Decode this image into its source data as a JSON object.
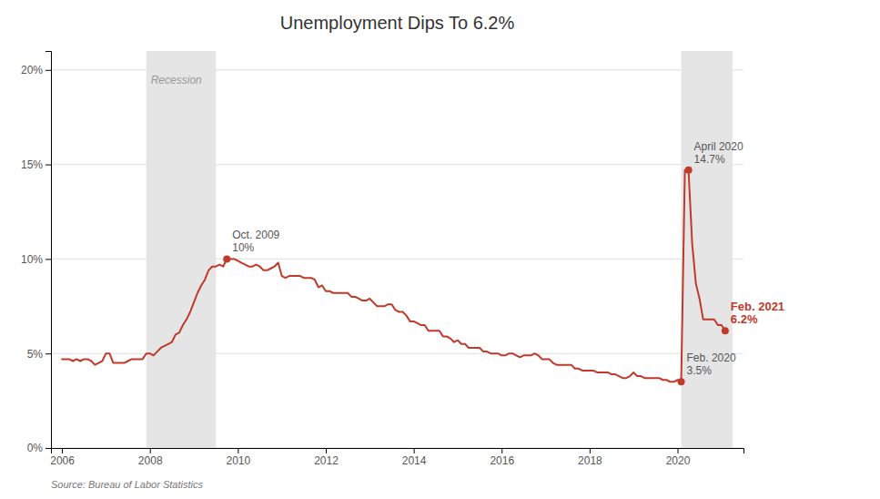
{
  "chart_data": {
    "type": "line",
    "title": "Unemployment Dips To 6.2%",
    "source": "Source: Bureau of Labor Statistics",
    "color": "#c0392b",
    "grid": true,
    "xlim": [
      2005.75,
      2021.5
    ],
    "ylim": [
      0,
      0.21
    ],
    "xticks": [
      2006,
      2008,
      2010,
      2012,
      2014,
      2016,
      2018,
      2020
    ],
    "yticks": [
      {
        "value": 0,
        "label": "0%"
      },
      {
        "value": 0.05,
        "label": "5%"
      },
      {
        "value": 0.1,
        "label": "10%"
      },
      {
        "value": 0.15,
        "label": "15%"
      },
      {
        "value": 0.2,
        "label": "20%"
      }
    ],
    "bands": [
      {
        "x": [
          2007.917,
          2009.5
        ],
        "label": "Recession",
        "color": "#e5e5e5"
      },
      {
        "x": [
          2020.083,
          2021.25
        ],
        "color": "#e5e5e5"
      }
    ],
    "annotations": [
      {
        "x": 2009.75,
        "y": 0.1,
        "text": [
          "Oct. 2009",
          "10%"
        ],
        "color": "#555555"
      },
      {
        "x": 2020.25,
        "y": 0.147,
        "text": [
          "April 2020",
          "14.7%"
        ],
        "color": "#555555"
      },
      {
        "x": 2020.083,
        "y": 0.035,
        "text": [
          "Feb. 2020",
          "3.5%"
        ],
        "color": "#555555"
      },
      {
        "x": 2021.083,
        "y": 0.062,
        "text": [
          "Feb. 2021",
          "6.2%"
        ],
        "color": "#c0392b"
      }
    ],
    "x": [
      2006.0,
      2006.083,
      2006.167,
      2006.25,
      2006.333,
      2006.417,
      2006.5,
      2006.583,
      2006.667,
      2006.75,
      2006.833,
      2006.917,
      2007.0,
      2007.083,
      2007.167,
      2007.25,
      2007.333,
      2007.417,
      2007.5,
      2007.583,
      2007.667,
      2007.75,
      2007.833,
      2007.917,
      2008.0,
      2008.083,
      2008.167,
      2008.25,
      2008.333,
      2008.417,
      2008.5,
      2008.583,
      2008.667,
      2008.75,
      2008.833,
      2008.917,
      2009.0,
      2009.083,
      2009.167,
      2009.25,
      2009.333,
      2009.417,
      2009.5,
      2009.583,
      2009.667,
      2009.75,
      2009.833,
      2009.917,
      2010.0,
      2010.083,
      2010.167,
      2010.25,
      2010.333,
      2010.417,
      2010.5,
      2010.583,
      2010.667,
      2010.75,
      2010.833,
      2010.917,
      2011.0,
      2011.083,
      2011.167,
      2011.25,
      2011.333,
      2011.417,
      2011.5,
      2011.583,
      2011.667,
      2011.75,
      2011.833,
      2011.917,
      2012.0,
      2012.083,
      2012.167,
      2012.25,
      2012.333,
      2012.417,
      2012.5,
      2012.583,
      2012.667,
      2012.75,
      2012.833,
      2012.917,
      2013.0,
      2013.083,
      2013.167,
      2013.25,
      2013.333,
      2013.417,
      2013.5,
      2013.583,
      2013.667,
      2013.75,
      2013.833,
      2013.917,
      2014.0,
      2014.083,
      2014.167,
      2014.25,
      2014.333,
      2014.417,
      2014.5,
      2014.583,
      2014.667,
      2014.75,
      2014.833,
      2014.917,
      2015.0,
      2015.083,
      2015.167,
      2015.25,
      2015.333,
      2015.417,
      2015.5,
      2015.583,
      2015.667,
      2015.75,
      2015.833,
      2015.917,
      2016.0,
      2016.083,
      2016.167,
      2016.25,
      2016.333,
      2016.417,
      2016.5,
      2016.583,
      2016.667,
      2016.75,
      2016.833,
      2016.917,
      2017.0,
      2017.083,
      2017.167,
      2017.25,
      2017.333,
      2017.417,
      2017.5,
      2017.583,
      2017.667,
      2017.75,
      2017.833,
      2017.917,
      2018.0,
      2018.083,
      2018.167,
      2018.25,
      2018.333,
      2018.417,
      2018.5,
      2018.583,
      2018.667,
      2018.75,
      2018.833,
      2018.917,
      2019.0,
      2019.083,
      2019.167,
      2019.25,
      2019.333,
      2019.417,
      2019.5,
      2019.583,
      2019.667,
      2019.75,
      2019.833,
      2019.917,
      2020.0,
      2020.083,
      2020.167,
      2020.25,
      2020.333,
      2020.417,
      2020.5,
      2020.583,
      2020.667,
      2020.75,
      2020.833,
      2020.917,
      2021.0,
      2021.083
    ],
    "values": [
      0.047,
      0.047,
      0.047,
      0.046,
      0.047,
      0.046,
      0.047,
      0.047,
      0.046,
      0.044,
      0.045,
      0.046,
      0.05,
      0.05,
      0.045,
      0.045,
      0.045,
      0.045,
      0.046,
      0.047,
      0.047,
      0.047,
      0.047,
      0.05,
      0.05,
      0.049,
      0.051,
      0.053,
      0.054,
      0.055,
      0.056,
      0.06,
      0.061,
      0.065,
      0.068,
      0.072,
      0.077,
      0.082,
      0.086,
      0.089,
      0.094,
      0.096,
      0.096,
      0.097,
      0.096,
      0.1,
      0.1,
      0.1,
      0.099,
      0.098,
      0.097,
      0.096,
      0.096,
      0.097,
      0.096,
      0.094,
      0.094,
      0.095,
      0.096,
      0.098,
      0.091,
      0.09,
      0.091,
      0.091,
      0.091,
      0.091,
      0.09,
      0.09,
      0.09,
      0.089,
      0.085,
      0.086,
      0.083,
      0.083,
      0.082,
      0.082,
      0.082,
      0.082,
      0.082,
      0.08,
      0.08,
      0.079,
      0.078,
      0.078,
      0.079,
      0.077,
      0.075,
      0.075,
      0.075,
      0.076,
      0.076,
      0.073,
      0.072,
      0.072,
      0.07,
      0.067,
      0.067,
      0.066,
      0.065,
      0.065,
      0.062,
      0.062,
      0.062,
      0.062,
      0.059,
      0.059,
      0.058,
      0.056,
      0.057,
      0.055,
      0.055,
      0.053,
      0.053,
      0.053,
      0.053,
      0.051,
      0.051,
      0.05,
      0.05,
      0.05,
      0.049,
      0.049,
      0.05,
      0.05,
      0.049,
      0.048,
      0.049,
      0.049,
      0.049,
      0.05,
      0.049,
      0.047,
      0.047,
      0.047,
      0.045,
      0.044,
      0.044,
      0.044,
      0.044,
      0.044,
      0.042,
      0.042,
      0.041,
      0.041,
      0.041,
      0.041,
      0.04,
      0.04,
      0.04,
      0.04,
      0.039,
      0.039,
      0.038,
      0.037,
      0.037,
      0.038,
      0.04,
      0.038,
      0.038,
      0.037,
      0.037,
      0.037,
      0.037,
      0.037,
      0.036,
      0.036,
      0.035,
      0.035,
      0.036,
      0.035,
      0.147,
      0.147,
      0.108,
      0.087,
      0.079,
      0.068,
      0.068,
      0.068,
      0.068,
      0.065,
      0.065,
      0.062
    ]
  }
}
